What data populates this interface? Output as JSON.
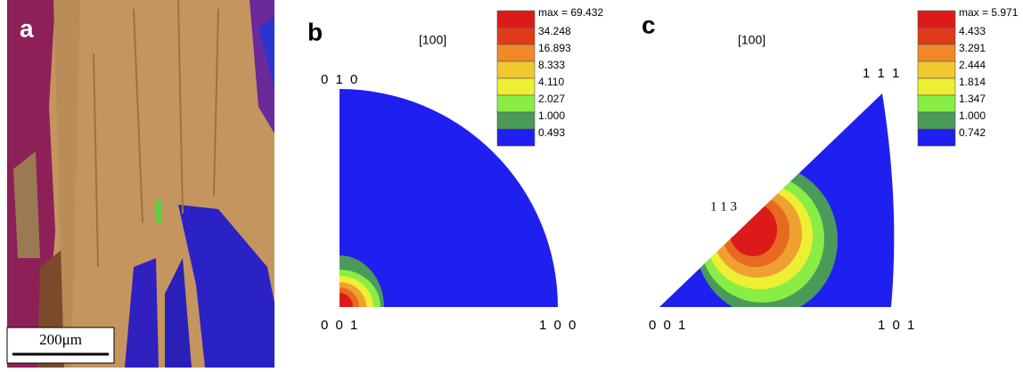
{
  "panels": [
    {
      "label": "a",
      "scale_bar": "200μm"
    },
    {
      "label": "b",
      "direction": "[100]",
      "corners": [
        "0 1 0",
        "0 0 1",
        "1 0 0"
      ],
      "legend": [
        "max = 69.432",
        "34.248",
        "16.893",
        "8.333",
        "4.110",
        "2.027",
        "1.000",
        "0.493"
      ]
    },
    {
      "label": "c",
      "direction": "[100]",
      "corners": [
        "1 1 1",
        "0 0 1",
        "1 0 1"
      ],
      "annotation": "1 1 3",
      "legend": [
        "max = 5.971",
        "4.433",
        "3.291",
        "2.444",
        "1.814",
        "1.347",
        "1.000",
        "0.742"
      ]
    }
  ]
}
